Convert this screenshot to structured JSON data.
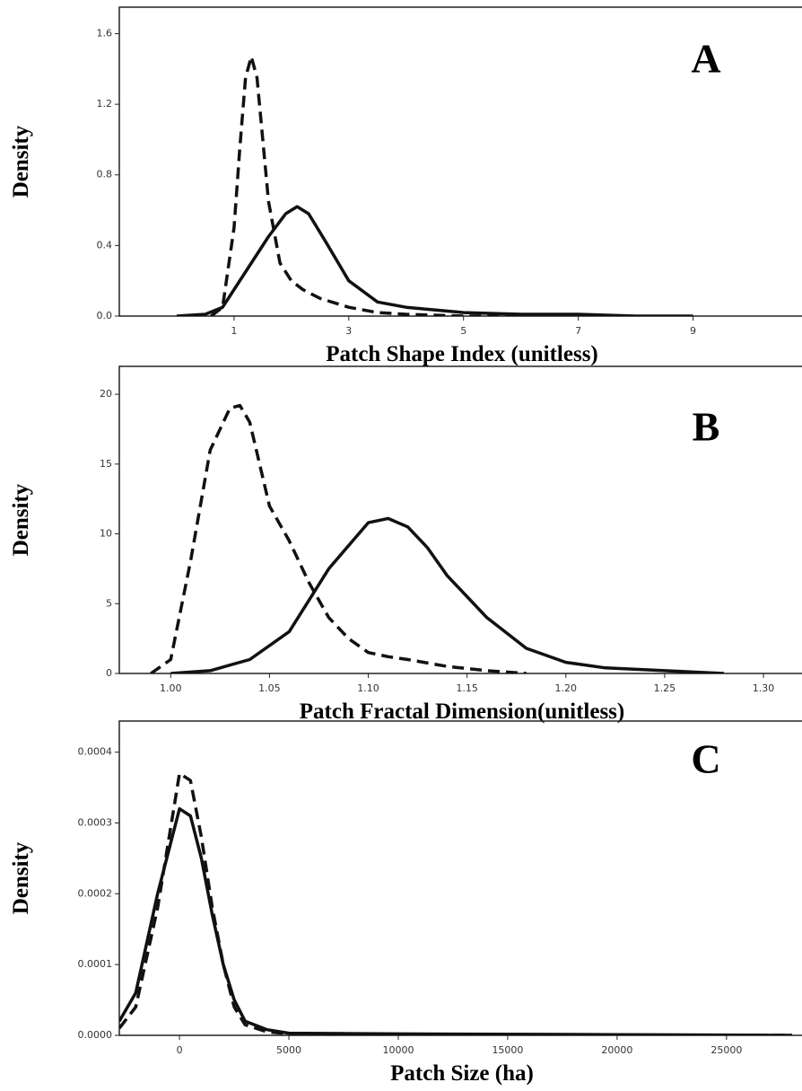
{
  "chart_data": [
    {
      "type": "line",
      "panel_label": "A",
      "ylabel": "Density",
      "xlabel": "Patch Shape Index (unitless)",
      "xlim": [
        -1,
        10.9
      ],
      "ylim": [
        0,
        1.75
      ],
      "xticks": [
        1,
        3,
        5,
        7,
        9
      ],
      "yticks": [
        {
          "value": 0,
          "label": "0.0"
        },
        0.4,
        0.8,
        1.2,
        1.6
      ],
      "series": [
        {
          "color": "#111111",
          "style": "dashed",
          "x": [
            0.6,
            0.8,
            1.0,
            1.1,
            1.2,
            1.3,
            1.4,
            1.5,
            1.6,
            1.8,
            2.0,
            2.2,
            2.5,
            3.0,
            3.5,
            4,
            5,
            6
          ],
          "values": [
            0,
            0.05,
            0.5,
            0.95,
            1.35,
            1.47,
            1.35,
            1.0,
            0.65,
            0.3,
            0.2,
            0.15,
            0.1,
            0.05,
            0.02,
            0.01,
            0,
            0
          ]
        },
        {
          "color": "#111111",
          "style": "solid",
          "x": [
            0,
            0.5,
            0.8,
            1.0,
            1.3,
            1.6,
            1.9,
            2.1,
            2.3,
            2.6,
            3.0,
            3.5,
            4,
            5,
            6,
            7,
            8,
            9
          ],
          "values": [
            0,
            0.01,
            0.05,
            0.15,
            0.3,
            0.45,
            0.58,
            0.62,
            0.58,
            0.42,
            0.2,
            0.08,
            0.05,
            0.02,
            0.01,
            0.01,
            0,
            0
          ]
        }
      ]
    },
    {
      "type": "line",
      "panel_label": "B",
      "ylabel": "Density",
      "xlabel": "Patch Fractal Dimension(unitless)",
      "xlim": [
        0.974,
        1.3195
      ],
      "ylim": [
        0,
        22
      ],
      "xticks": [
        {
          "value": 1,
          "label": "1.00"
        },
        1.05,
        {
          "value": 1.1,
          "label": "1.10"
        },
        1.15,
        {
          "value": 1.2,
          "label": "1.20"
        },
        1.25,
        {
          "value": 1.3,
          "label": "1.30"
        }
      ],
      "yticks": [
        0,
        5,
        10,
        15,
        20
      ],
      "series": [
        {
          "color": "#111111",
          "style": "dashed",
          "x": [
            0.99,
            1.0,
            1.01,
            1.02,
            1.03,
            1.035,
            1.04,
            1.05,
            1.06,
            1.07,
            1.08,
            1.09,
            1.1,
            1.11,
            1.12,
            1.14,
            1.16,
            1.18
          ],
          "values": [
            0,
            1,
            8,
            16,
            19,
            19.2,
            18,
            12,
            9.5,
            6.5,
            4,
            2.5,
            1.5,
            1.2,
            1,
            0.5,
            0.2,
            0
          ]
        },
        {
          "color": "#111111",
          "style": "solid",
          "x": [
            1.0,
            1.02,
            1.04,
            1.06,
            1.08,
            1.1,
            1.11,
            1.12,
            1.13,
            1.14,
            1.15,
            1.16,
            1.18,
            1.2,
            1.22,
            1.25,
            1.28
          ],
          "values": [
            0,
            0.2,
            1,
            3,
            7.5,
            10.8,
            11.1,
            10.5,
            9,
            7,
            5.5,
            4,
            1.8,
            0.8,
            0.4,
            0.2,
            0
          ]
        }
      ]
    },
    {
      "type": "line",
      "panel_label": "C",
      "ylabel": "Density",
      "xlabel": "Patch Size (ha)",
      "xlim": [
        -2750,
        28450
      ],
      "ylim": [
        0,
        0.000444
      ],
      "xticks": [
        0,
        5000,
        10000,
        15000,
        20000,
        25000
      ],
      "yticks": [
        {
          "value": 0,
          "label": "0.0000"
        },
        0.0001,
        0.0002,
        0.0003,
        0.0004
      ],
      "series": [
        {
          "color": "#111111",
          "style": "dashed",
          "x": [
            -2750,
            -2000,
            -1000,
            0,
            500,
            1000,
            1500,
            2000,
            2500,
            3000,
            4000,
            5000,
            10000,
            20000,
            28000
          ],
          "values": [
            1e-05,
            4e-05,
            0.00018,
            0.00037,
            0.00036,
            0.00028,
            0.00018,
            0.0001,
            4e-05,
            1.5e-05,
            5e-06,
            2e-06,
            1e-06,
            0,
            0
          ]
        },
        {
          "color": "#111111",
          "style": "solid",
          "x": [
            -2750,
            -2000,
            -1000,
            0,
            500,
            1000,
            1500,
            2000,
            2500,
            3000,
            4000,
            5000,
            10000,
            20000,
            28000
          ],
          "values": [
            2e-05,
            6e-05,
            0.0002,
            0.00032,
            0.00031,
            0.00025,
            0.00017,
            0.0001,
            5e-05,
            2e-05,
            8e-06,
            3e-06,
            2e-06,
            1e-06,
            0
          ]
        }
      ]
    }
  ]
}
